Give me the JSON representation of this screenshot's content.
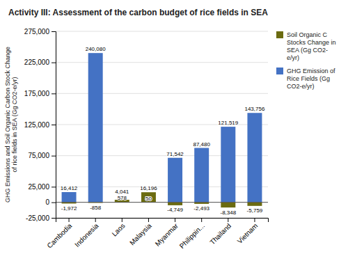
{
  "chart_data": {
    "type": "bar",
    "title": "Activity III: Assessment of the carbon budget of rice fields in SEA",
    "ylabel": "GHG Emissions and Soil Organic Carbon Stock Change\nof rice fields in SEA (Gg CO2-e/yr)",
    "categories": [
      "Cambodia",
      "Indonesia",
      "Laos",
      "Malaysia",
      "Myanmar",
      "Philippin...",
      "Thailand",
      "Vietnam"
    ],
    "series": [
      {
        "name": "Soil Organic C\nStocks Change in\nSEA (Gg CO2-\ne/yr)",
        "color": "#6b6b10",
        "values": [
          -1972,
          -858,
          4041,
          16196,
          -4749,
          -2493,
          -8348,
          -5759
        ],
        "value_labels": [
          "-1,972",
          "-858",
          "4,041",
          "16,196",
          "-4,749",
          "-2,493",
          "-8,348",
          "-5,759"
        ]
      },
      {
        "name": "GHG Emission of\nRice Fields (Gg\nCO2-e/yr)",
        "color": "#4472c4",
        "values": [
          16412,
          240080,
          578,
          50,
          71542,
          87480,
          121519,
          143756
        ],
        "value_labels": [
          "16,412",
          "240,080",
          "578",
          "50",
          "71,542",
          "87,480",
          "121,519",
          "143,756"
        ]
      }
    ],
    "ylim": [
      -25000,
      275000
    ],
    "yticks": [
      {
        "value": -25000,
        "label": "-25,000"
      },
      0,
      {
        "value": 25000,
        "label": "25,000"
      },
      {
        "value": 75000,
        "label": "75,000"
      },
      {
        "value": 125000,
        "label": "125,000"
      },
      {
        "value": 175000,
        "label": "175,000"
      },
      {
        "value": 225000,
        "label": "225,000"
      },
      {
        "value": 275000,
        "label": "275,000"
      }
    ],
    "grid": true,
    "legend": "upper right",
    "data_labels": true
  }
}
